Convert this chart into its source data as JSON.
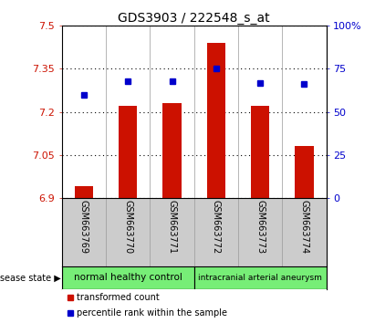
{
  "title": "GDS3903 / 222548_s_at",
  "samples": [
    "GSM663769",
    "GSM663770",
    "GSM663771",
    "GSM663772",
    "GSM663773",
    "GSM663774"
  ],
  "transformed_count": [
    6.94,
    7.22,
    7.23,
    7.44,
    7.22,
    7.08
  ],
  "percentile_rank": [
    60,
    68,
    68,
    75,
    67,
    66
  ],
  "ylim_left": [
    6.9,
    7.5
  ],
  "ylim_right": [
    0,
    100
  ],
  "yticks_left": [
    6.9,
    7.05,
    7.2,
    7.35,
    7.5
  ],
  "yticks_right": [
    0,
    25,
    50,
    75,
    100
  ],
  "bar_color": "#cc1100",
  "dot_color": "#0000cc",
  "bar_width": 0.42,
  "group1_label": "normal healthy control",
  "group2_label": "intracranial arterial aneurysm",
  "group_color": "#77ee77",
  "disease_label": "disease state",
  "legend_red_label": "transformed count",
  "legend_blue_label": "percentile rank within the sample",
  "sample_bg": "#cccccc",
  "plot_bg": "#ffffff",
  "title_fontsize": 10,
  "label_fontsize": 7,
  "tick_fontsize": 8
}
